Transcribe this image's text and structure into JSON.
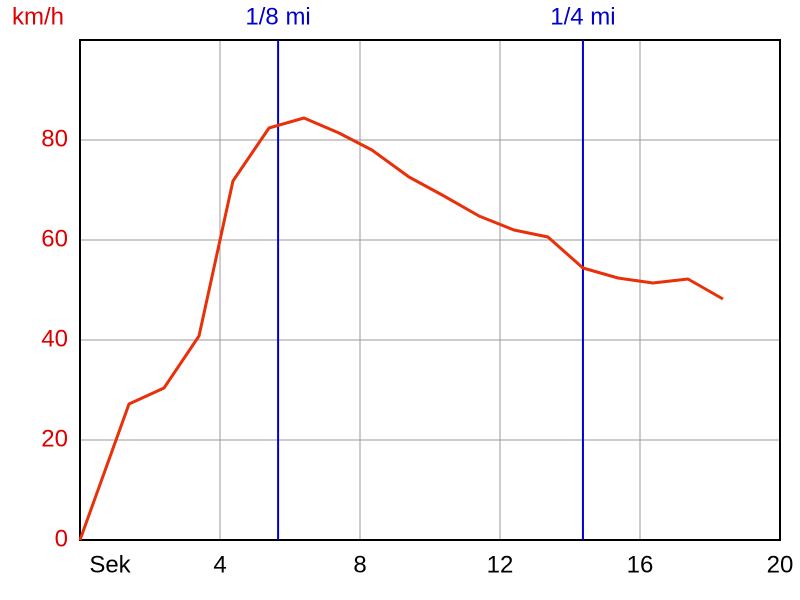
{
  "chart_data": {
    "type": "line",
    "y_label": "km/h",
    "x_label": "Sek",
    "x": [
      0,
      1.4,
      2.4,
      3.4,
      4.37,
      5.4,
      6.4,
      7.4,
      8.34,
      9.4,
      10.4,
      11.4,
      12.4,
      13.37,
      14.37,
      15.37,
      16.37,
      17.37,
      18.37
    ],
    "values": [
      0,
      27.2,
      30.4,
      40.8,
      71.8,
      82.4,
      84.4,
      81.4,
      78,
      72.6,
      68.8,
      64.8,
      62,
      60.6,
      54.4,
      52.4,
      51.4,
      52.2,
      48.2
    ],
    "color": "#e8300a",
    "xlim": [
      0,
      20
    ],
    "xticks": [
      4,
      8,
      12,
      16,
      20
    ],
    "ylim": [
      0,
      100
    ],
    "yticks": [
      0,
      20,
      40,
      60,
      80
    ],
    "grid": true,
    "markers": [
      {
        "x": 5.66,
        "label": "1/8 mi"
      },
      {
        "x": 14.37,
        "label": "1/4 mi"
      }
    ],
    "marker_color": "#0000cc",
    "y_label_color": "#dd0000"
  }
}
